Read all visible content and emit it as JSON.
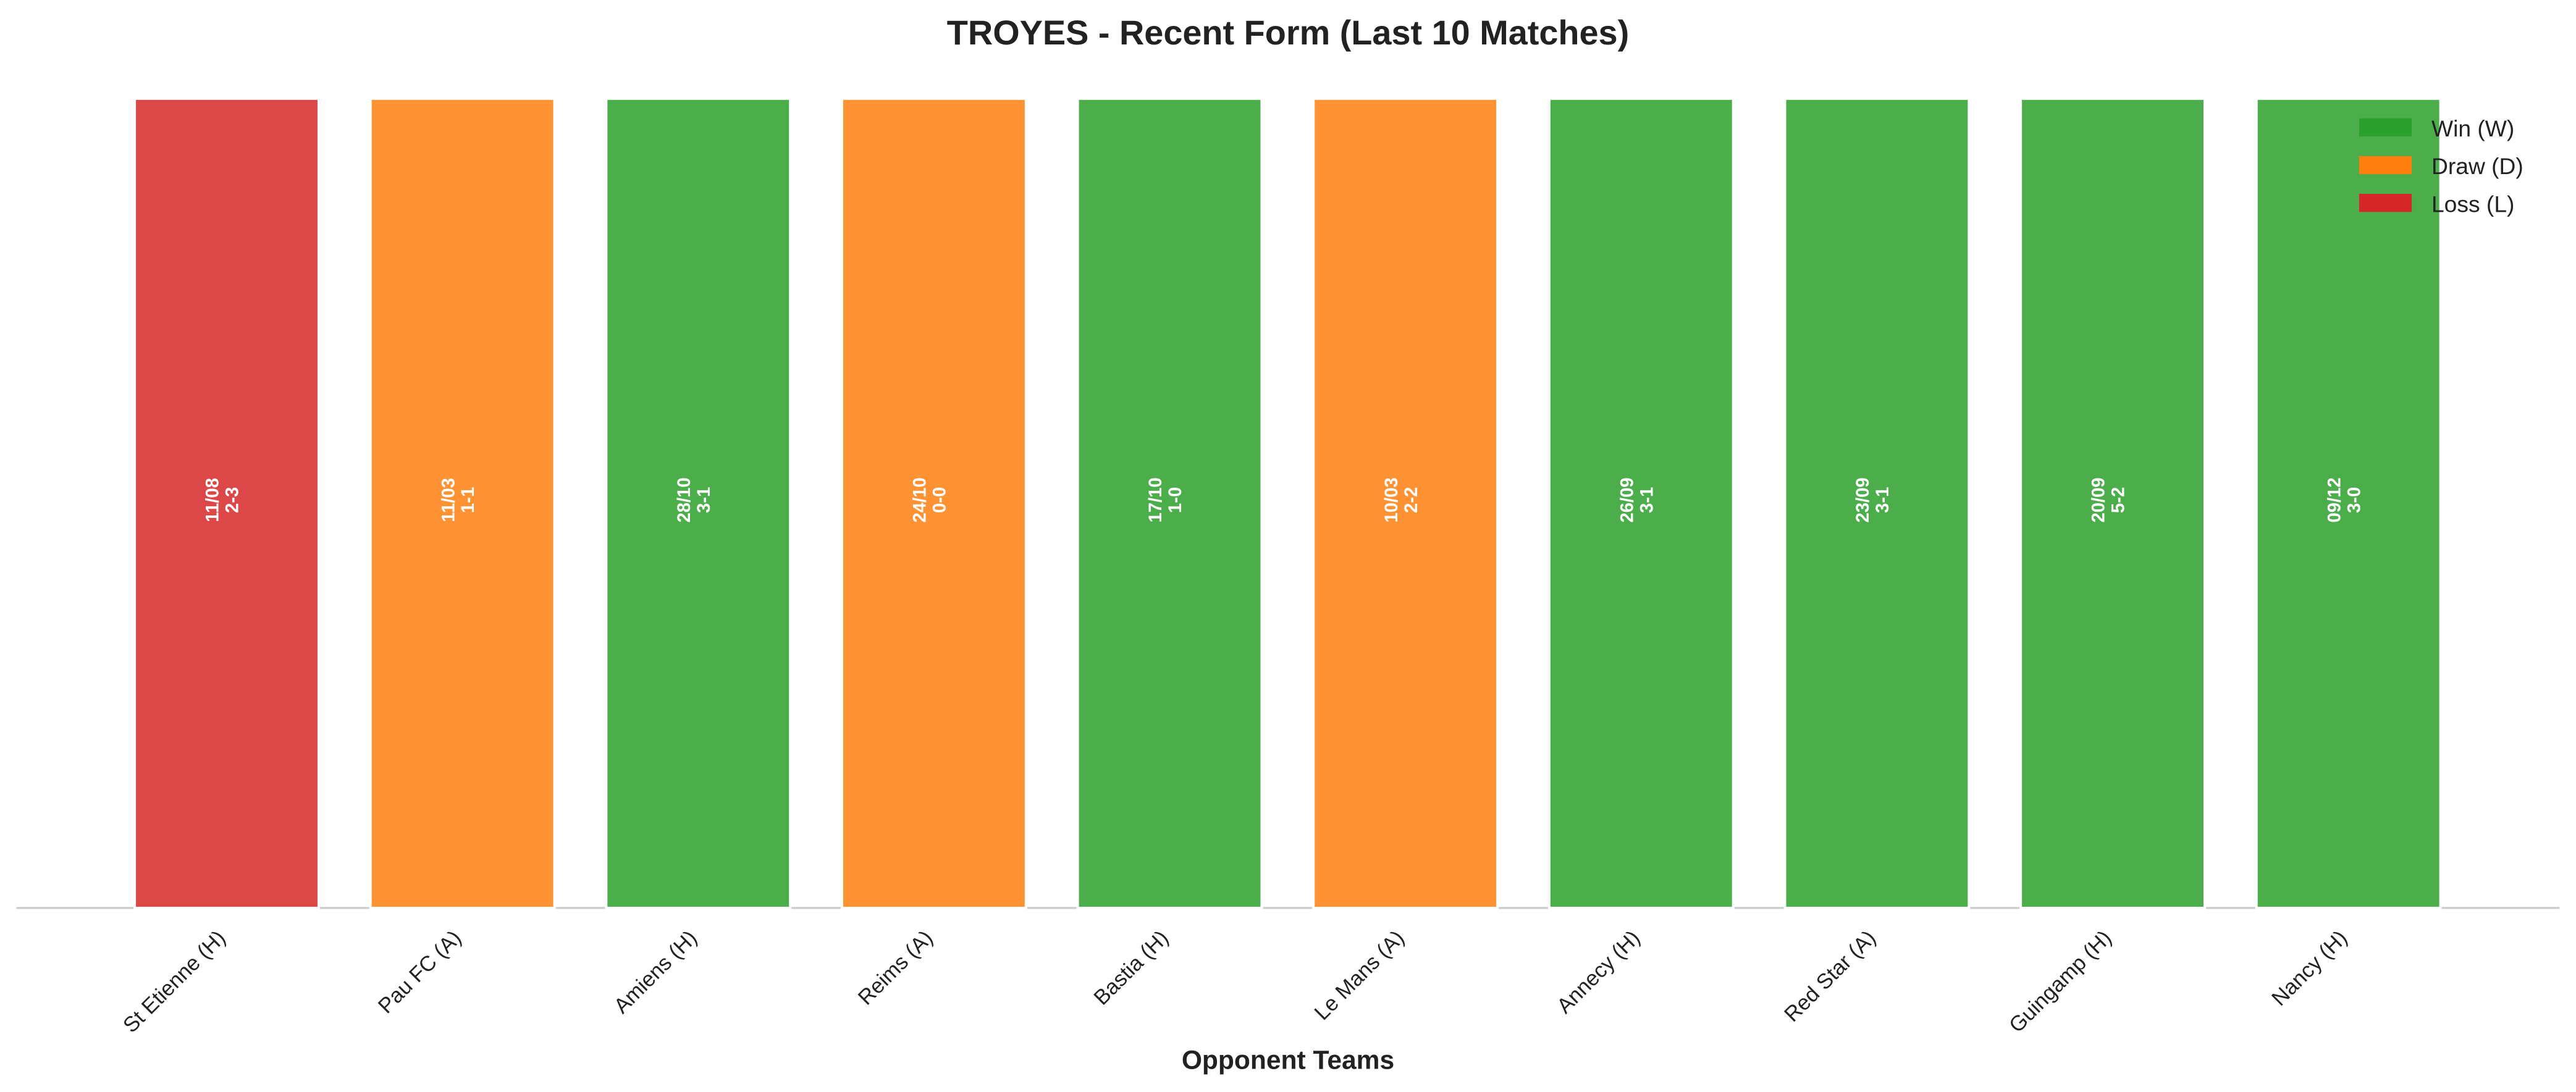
{
  "chart_data": {
    "type": "bar",
    "title": "TROYES - Recent Form (Last 10 Matches)",
    "x_label": "Opponent Teams",
    "categories": [
      "St Etienne (H)",
      "Pau FC (A)",
      "Amiens (H)",
      "Reims (A)",
      "Bastia (H)",
      "Le Mans (A)",
      "Annecy (H)",
      "Red Star (A)",
      "Guingamp (H)",
      "Nancy (H)"
    ],
    "dates": [
      "11/08",
      "11/03",
      "28/10",
      "24/10",
      "17/10",
      "10/03",
      "26/09",
      "23/09",
      "20/09",
      "09/12"
    ],
    "scores": [
      "2-3",
      "1-1",
      "3-1",
      "0-0",
      "1-0",
      "2-2",
      "3-1",
      "3-1",
      "5-2",
      "3-0"
    ],
    "series": [
      {
        "name": "Win (W)",
        "color": "#2ca02c",
        "values": [
          null,
          null,
          1,
          null,
          1,
          null,
          1,
          1,
          1,
          1
        ]
      },
      {
        "name": "Draw (D)",
        "color": "#ff7f0e",
        "values": [
          null,
          1,
          null,
          1,
          null,
          1,
          null,
          null,
          null,
          null
        ]
      },
      {
        "name": "Loss (L)",
        "color": "#d62728",
        "values": [
          1,
          null,
          null,
          null,
          null,
          null,
          null,
          null,
          null,
          null
        ]
      }
    ],
    "ylim": [
      0,
      1
    ],
    "legend": "upper right"
  }
}
